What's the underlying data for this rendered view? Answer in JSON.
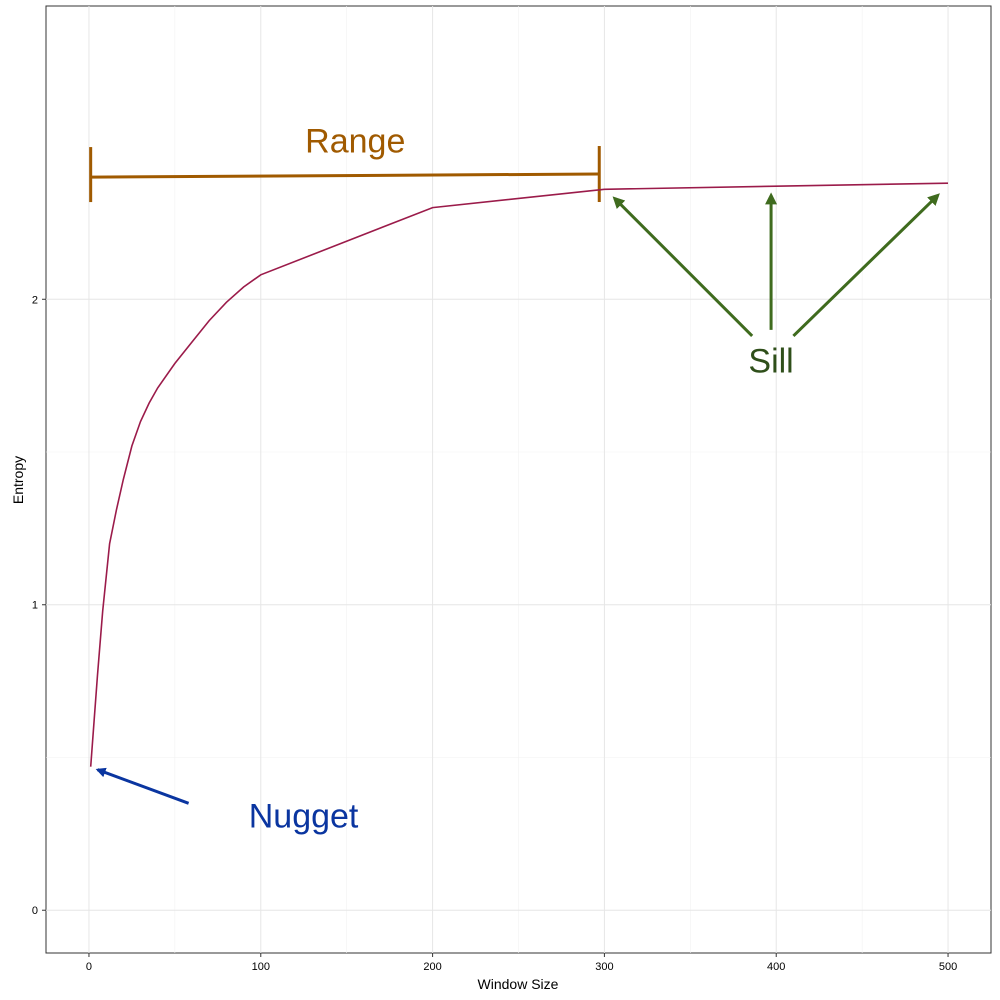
{
  "chart_data": {
    "type": "line",
    "xlabel": "Window Size",
    "ylabel": "Entropy",
    "xlim": [
      -25,
      525
    ],
    "ylim": [
      -0.14,
      2.96
    ],
    "x_ticks": [
      0,
      100,
      200,
      300,
      400,
      500
    ],
    "y_ticks": [
      0,
      1,
      2
    ],
    "x_tick_labels": [
      "0",
      "100",
      "200",
      "300",
      "400",
      "500"
    ],
    "y_tick_labels": [
      "0",
      "1",
      "2"
    ],
    "grid": true,
    "series": [
      {
        "color": "#9b1b4a",
        "x": [
          1,
          3,
          5,
          8,
          12,
          16,
          20,
          25,
          30,
          35,
          40,
          50,
          60,
          70,
          80,
          90,
          100,
          200,
          300,
          400,
          500
        ],
        "y": [
          0.47,
          0.62,
          0.77,
          0.98,
          1.2,
          1.31,
          1.41,
          1.52,
          1.6,
          1.66,
          1.71,
          1.79,
          1.86,
          1.93,
          1.99,
          2.04,
          2.08,
          2.3,
          2.36,
          2.37,
          2.38
        ]
      }
    ],
    "annotations": {
      "range": {
        "label": "Range",
        "color": "#a05a00",
        "x_start": 1,
        "x_end": 297,
        "y_start": 2.4,
        "y_end": 2.41,
        "label_x": 155,
        "label_y": 2.52
      },
      "sill": {
        "label": "Sill",
        "color": "#3f6b1e",
        "text_color": "#2f4f1a",
        "label_x": 397,
        "label_y": 1.8,
        "arrows": [
          {
            "from_x": 386,
            "from_y": 1.88,
            "to_x": 306,
            "to_y": 2.33
          },
          {
            "from_x": 397,
            "from_y": 1.9,
            "to_x": 397,
            "to_y": 2.34
          },
          {
            "from_x": 410,
            "from_y": 1.88,
            "to_x": 494,
            "to_y": 2.34
          }
        ]
      },
      "nugget": {
        "label": "Nugget",
        "color": "#0a35a0",
        "label_x": 93,
        "label_y": 0.31,
        "arrow": {
          "from_x": 58,
          "from_y": 0.35,
          "to_x": 5,
          "to_y": 0.46
        }
      }
    }
  }
}
